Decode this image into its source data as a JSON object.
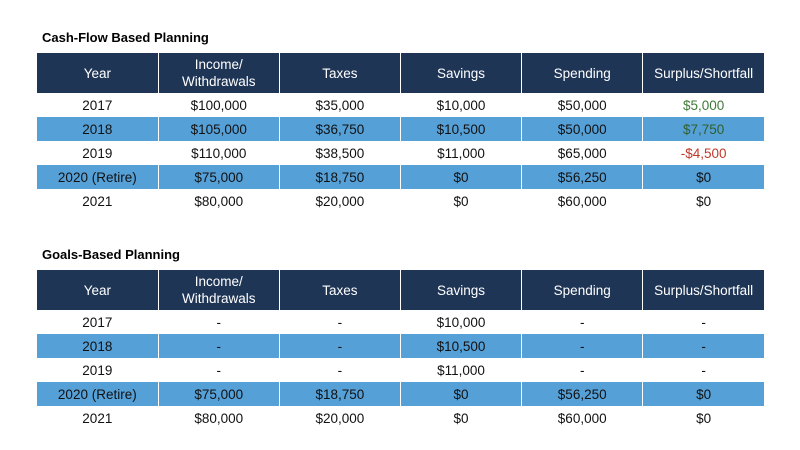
{
  "columns": [
    "Year",
    "Income/\nWithdrawals",
    "Taxes",
    "Savings",
    "Spending",
    "Surplus/Shortfall"
  ],
  "colors": {
    "header_bg": "#1f3556",
    "alt_row_bg": "#56a0d8",
    "surplus_positive": "#3f7a3a",
    "shortfall_negative": "#c0392b"
  },
  "cashflow": {
    "title": "Cash-Flow Based Planning",
    "rows": [
      {
        "year": "2017",
        "income": "$100,000",
        "taxes": "$35,000",
        "savings": "$10,000",
        "spending": "$50,000",
        "surplus": "$5,000"
      },
      {
        "year": "2018",
        "income": "$105,000",
        "taxes": "$36,750",
        "savings": "$10,500",
        "spending": "$50,000",
        "surplus": "$7,750"
      },
      {
        "year": "2019",
        "income": "$110,000",
        "taxes": "$38,500",
        "savings": "$11,000",
        "spending": "$65,000",
        "surplus": "-$4,500"
      },
      {
        "year": "2020 (Retire)",
        "income": "$75,000",
        "taxes": "$18,750",
        "savings": "$0",
        "spending": "$56,250",
        "surplus": "$0"
      },
      {
        "year": "2021",
        "income": "$80,000",
        "taxes": "$20,000",
        "savings": "$0",
        "spending": "$60,000",
        "surplus": "$0"
      }
    ]
  },
  "goals": {
    "title": "Goals-Based Planning",
    "rows": [
      {
        "year": "2017",
        "income": "-",
        "taxes": "-",
        "savings": "$10,000",
        "spending": "-",
        "surplus": "-"
      },
      {
        "year": "2018",
        "income": "-",
        "taxes": "-",
        "savings": "$10,500",
        "spending": "-",
        "surplus": "-"
      },
      {
        "year": "2019",
        "income": "-",
        "taxes": "-",
        "savings": "$11,000",
        "spending": "-",
        "surplus": "-"
      },
      {
        "year": "2020 (Retire)",
        "income": "$75,000",
        "taxes": "$18,750",
        "savings": "$0",
        "spending": "$56,250",
        "surplus": "$0"
      },
      {
        "year": "2021",
        "income": "$80,000",
        "taxes": "$20,000",
        "savings": "$0",
        "spending": "$60,000",
        "surplus": "$0"
      }
    ]
  }
}
